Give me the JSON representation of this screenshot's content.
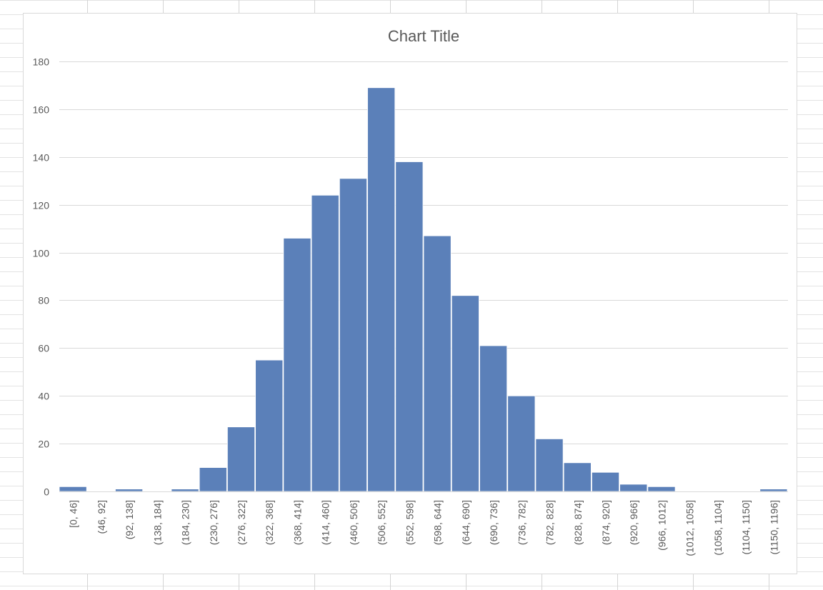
{
  "chart_data": {
    "type": "bar",
    "title": "Chart Title",
    "xlabel": "",
    "ylabel": "",
    "ylim": [
      0,
      180
    ],
    "yticks": [
      0,
      20,
      40,
      60,
      80,
      100,
      120,
      140,
      160,
      180
    ],
    "grid": true,
    "legend": "none",
    "bar_color": "#5b80b9",
    "categories": [
      "[0, 46]",
      "(46, 92]",
      "(92, 138]",
      "(138, 184]",
      "(184, 230]",
      "(230, 276]",
      "(276, 322]",
      "(322, 368]",
      "(368, 414]",
      "(414, 460]",
      "(460, 506]",
      "(506, 552]",
      "(552, 598]",
      "(598, 644]",
      "(644, 690]",
      "(690, 736]",
      "(736, 782]",
      "(782, 828]",
      "(828, 874]",
      "(874, 920]",
      "(920, 966]",
      "(966, 1012]",
      "(1012, 1058]",
      "(1058, 1104]",
      "(1104, 1150]",
      "(1150, 1196]"
    ],
    "values": [
      2,
      0,
      1,
      0,
      1,
      10,
      27,
      55,
      106,
      124,
      131,
      169,
      138,
      107,
      82,
      61,
      40,
      22,
      12,
      8,
      3,
      2,
      0,
      0,
      0,
      1
    ]
  }
}
